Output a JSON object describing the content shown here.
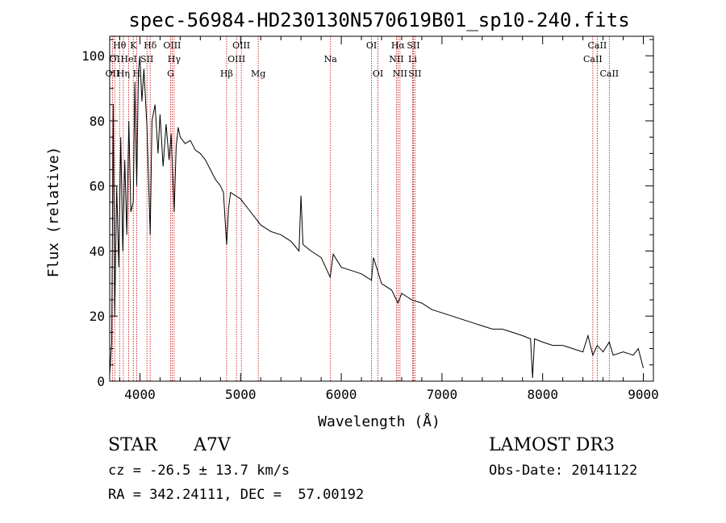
{
  "chart_data": {
    "type": "line",
    "title": "spec-56984-HD230130N570619B01_sp10-240.fits",
    "xlabel": "Wavelength (Å)",
    "ylabel": "Flux (relative)",
    "xlim": [
      3700,
      9100
    ],
    "ylim": [
      0,
      106
    ],
    "xticks_major": [
      4000,
      5000,
      6000,
      7000,
      8000,
      9000
    ],
    "xtick_labels": [
      "4000",
      "5000",
      "6000",
      "7000",
      "8000",
      "9000"
    ],
    "xticks_minor_step": 200,
    "yticks_major": [
      0,
      20,
      40,
      60,
      80,
      100
    ],
    "ytick_labels": [
      "0",
      "20",
      "40",
      "60",
      "80",
      "100"
    ],
    "yticks_minor_step": 5,
    "grid": false,
    "series": [
      {
        "name": "spectrum",
        "color": "#000000",
        "x": [
          3700,
          3720,
          3735,
          3750,
          3770,
          3790,
          3810,
          3830,
          3850,
          3870,
          3890,
          3910,
          3934,
          3950,
          3968,
          3985,
          4000,
          4020,
          4040,
          4070,
          4102,
          4120,
          4150,
          4180,
          4200,
          4230,
          4260,
          4290,
          4310,
          4340,
          4360,
          4380,
          4400,
          4450,
          4500,
          4550,
          4600,
          4650,
          4700,
          4750,
          4800,
          4830,
          4861,
          4880,
          4900,
          4950,
          5000,
          5050,
          5100,
          5150,
          5200,
          5300,
          5400,
          5500,
          5580,
          5600,
          5620,
          5700,
          5800,
          5890,
          5920,
          6000,
          6100,
          6200,
          6300,
          6320,
          6400,
          6500,
          6563,
          6600,
          6700,
          6800,
          6900,
          7000,
          7100,
          7200,
          7300,
          7400,
          7500,
          7600,
          7700,
          7800,
          7880,
          7900,
          7920,
          8000,
          8100,
          8200,
          8300,
          8400,
          8450,
          8498,
          8542,
          8600,
          8662,
          8700,
          8800,
          8900,
          8950,
          9000
        ],
        "y": [
          2,
          12,
          85,
          20,
          60,
          35,
          75,
          40,
          68,
          45,
          80,
          52,
          55,
          92,
          60,
          95,
          100,
          86,
          96,
          78,
          45,
          80,
          85,
          70,
          82,
          66,
          79,
          68,
          76,
          52,
          72,
          78,
          75,
          73,
          74,
          71,
          70,
          68,
          65,
          62,
          60,
          58,
          42,
          53,
          58,
          57,
          56,
          54,
          52,
          50,
          48,
          46,
          45,
          43,
          40,
          57,
          42,
          40,
          38,
          32,
          39,
          35,
          34,
          33,
          31,
          38,
          30,
          28,
          24,
          27,
          25,
          24,
          22,
          21,
          20,
          19,
          18,
          17,
          16,
          16,
          15,
          14,
          13,
          1,
          13,
          12,
          11,
          11,
          10,
          9,
          14,
          8,
          11,
          9,
          12,
          8,
          9,
          8,
          10,
          4
        ]
      }
    ],
    "line_markers": [
      {
        "label": "OII",
        "x": 3727,
        "row": 2
      },
      {
        "label": "Hθ",
        "x": 3798,
        "row": 0
      },
      {
        "label": "OI",
        "x": 3750,
        "row": 1
      },
      {
        "label": "Hη",
        "x": 3835,
        "row": 2
      },
      {
        "label": "HeI",
        "x": 3889,
        "row": 1
      },
      {
        "label": "K",
        "x": 3934,
        "row": 0
      },
      {
        "label": "H",
        "x": 3968,
        "row": 2
      },
      {
        "label": "SII",
        "x": 4070,
        "row": 1
      },
      {
        "label": "Hδ",
        "x": 4102,
        "row": 0
      },
      {
        "label": "OIII",
        "x": 4320,
        "row": 0
      },
      {
        "label": "Hγ",
        "x": 4340,
        "row": 1
      },
      {
        "label": "G",
        "x": 4305,
        "row": 2
      },
      {
        "label": "Hβ",
        "x": 4861,
        "row": 2
      },
      {
        "label": "OIII",
        "x": 4959,
        "row": 1
      },
      {
        "label": "OIII",
        "x": 5007,
        "row": 0
      },
      {
        "label": "Mg",
        "x": 5175,
        "row": 2
      },
      {
        "label": "Na",
        "x": 5893,
        "row": 1
      },
      {
        "label": "OI",
        "x": 6300,
        "row": 0
      },
      {
        "label": "OI",
        "x": 6364,
        "row": 2
      },
      {
        "label": "Hα",
        "x": 6563,
        "row": 0
      },
      {
        "label": "NII",
        "x": 6548,
        "row": 1
      },
      {
        "label": "NII",
        "x": 6583,
        "row": 2
      },
      {
        "label": "SII",
        "x": 6716,
        "row": 0
      },
      {
        "label": "Li",
        "x": 6708,
        "row": 1
      },
      {
        "label": "SII",
        "x": 6731,
        "row": 2
      },
      {
        "label": "CaII",
        "x": 8542,
        "row": 0
      },
      {
        "label": "CaII",
        "x": 8498,
        "row": 1
      },
      {
        "label": "CaII",
        "x": 8662,
        "row": 2
      }
    ]
  },
  "footer": {
    "object_class": "STAR",
    "subclass": "A7V",
    "survey": "LAMOST DR3",
    "redshift": "cz = -26.5 ± 13.7 km/s",
    "obs_date": "Obs-Date: 20141122",
    "coordinates": "RA = 342.24111, DEC =  57.00192"
  },
  "colors": {
    "spectrum": "#000000",
    "marker_line": "#c00000",
    "axes": "#000000"
  }
}
